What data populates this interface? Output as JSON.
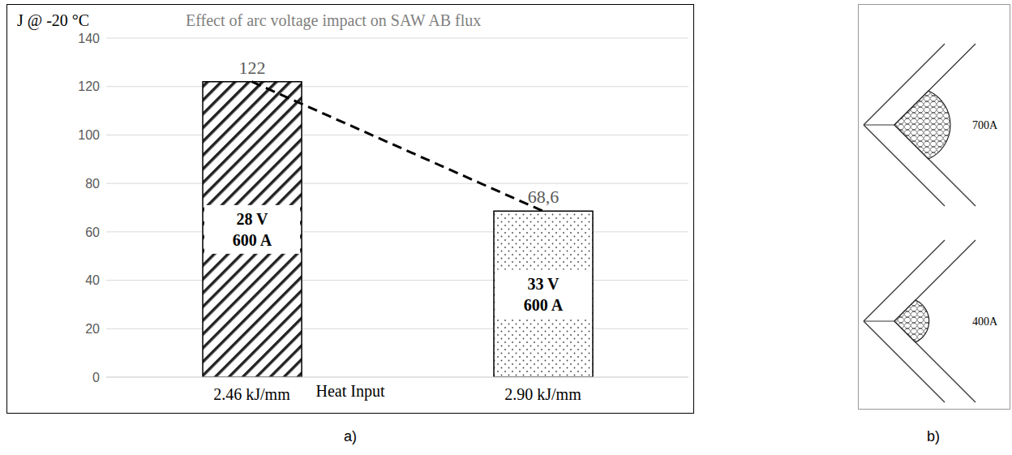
{
  "chart_data": {
    "type": "bar",
    "title": "Effect of arc voltage impact on SAW AB flux",
    "y_label": "J @ -20 °C",
    "x_label": "Heat Input",
    "categories": [
      "2.46 kJ/mm",
      "2.90 kJ/mm"
    ],
    "series": [
      {
        "type": "bar",
        "values": [
          122,
          68.6
        ],
        "value_labels": [
          "122",
          "68,6"
        ],
        "colors": [
          "#222222",
          "#444444"
        ]
      },
      {
        "type": "line",
        "values": [
          122,
          68.6
        ],
        "color": "#000000",
        "line_style": "dashed"
      }
    ],
    "annotations": [
      [
        "28 V",
        "600 A"
      ],
      [
        "33 V",
        "600 A"
      ]
    ],
    "ylim": [
      0,
      140
    ],
    "yticks": [
      0,
      20,
      40,
      60,
      80,
      100,
      120,
      140
    ],
    "grid": true,
    "data_labels": true
  },
  "panel_labels": [
    "a)",
    "b)"
  ],
  "diagram": {
    "labels": [
      "700A",
      "400A"
    ]
  }
}
